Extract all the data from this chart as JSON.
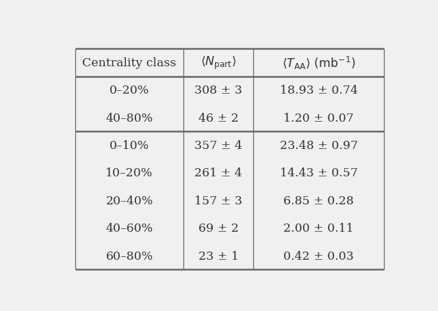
{
  "col_header_latex": [
    "Centrality class",
    "$\\langle N_{\\mathrm{part}}\\rangle$",
    "$\\langle T_{\\mathrm{AA}}\\rangle\\ (\\mathrm{mb}^{-1})$"
  ],
  "rows_group1": [
    [
      "0–20%",
      "308 ± 3",
      "18.93 ± 0.74"
    ],
    [
      "40–80%",
      "46 ± 2",
      "1.20 ± 0.07"
    ]
  ],
  "rows_group2": [
    [
      "0–10%",
      "357 ± 4",
      "23.48 ± 0.97"
    ],
    [
      "10–20%",
      "261 ± 4",
      "14.43 ± 0.57"
    ],
    [
      "20–40%",
      "157 ± 3",
      "6.85 ± 0.28"
    ],
    [
      "40–60%",
      "69 ± 2",
      "2.00 ± 0.11"
    ],
    [
      "60–80%",
      "23 ± 1",
      "0.42 ± 0.03"
    ]
  ],
  "line_color": "#666666",
  "text_color": "#333333",
  "bg_color": "#f0f0f0",
  "font_size": 12.5
}
